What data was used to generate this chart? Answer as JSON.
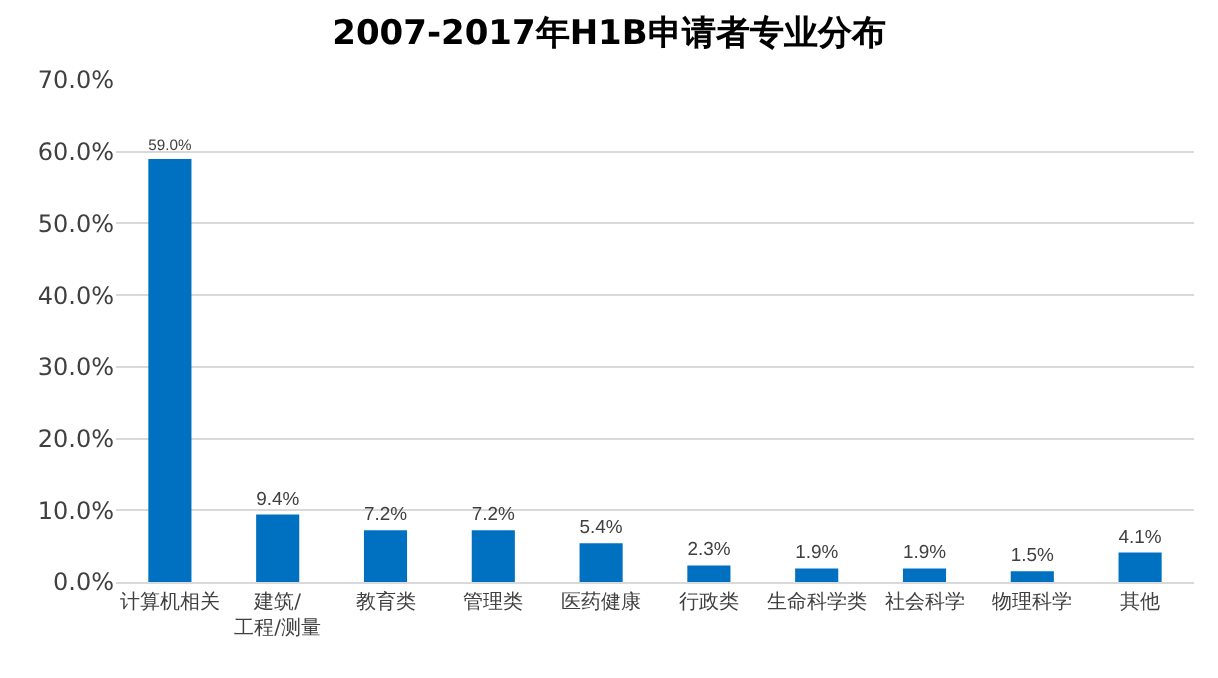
{
  "chart_data": {
    "type": "bar",
    "title": "2007-2017年H1B申请者专业分布",
    "categories": [
      "计算机相关",
      "建筑/工程/测量",
      "教育类",
      "管理类",
      "医药健康",
      "行政类",
      "生命科学类",
      "社会科学",
      "物理科学",
      "其他"
    ],
    "values": [
      59.0,
      9.4,
      7.2,
      7.2,
      5.4,
      2.3,
      1.9,
      1.9,
      1.5,
      4.1
    ],
    "value_labels": [
      "59.0%",
      "9.4%",
      "7.2%",
      "7.2%",
      "5.4%",
      "2.3%",
      "1.9%",
      "1.9%",
      "1.5%",
      "4.1%"
    ],
    "color": "#0070c0",
    "ylim": [
      0,
      70
    ],
    "yticks": [
      {
        "value": 0,
        "label": "0.0%"
      },
      {
        "value": 10,
        "label": "10.0%"
      },
      {
        "value": 20,
        "label": "20.0%"
      },
      {
        "value": 30,
        "label": "30.0%"
      },
      {
        "value": 40,
        "label": "40.0%"
      },
      {
        "value": 50,
        "label": "50.0%"
      },
      {
        "value": 60,
        "label": "60.0%"
      },
      {
        "value": 70,
        "label": "70.0%"
      }
    ],
    "grid": "y"
  }
}
